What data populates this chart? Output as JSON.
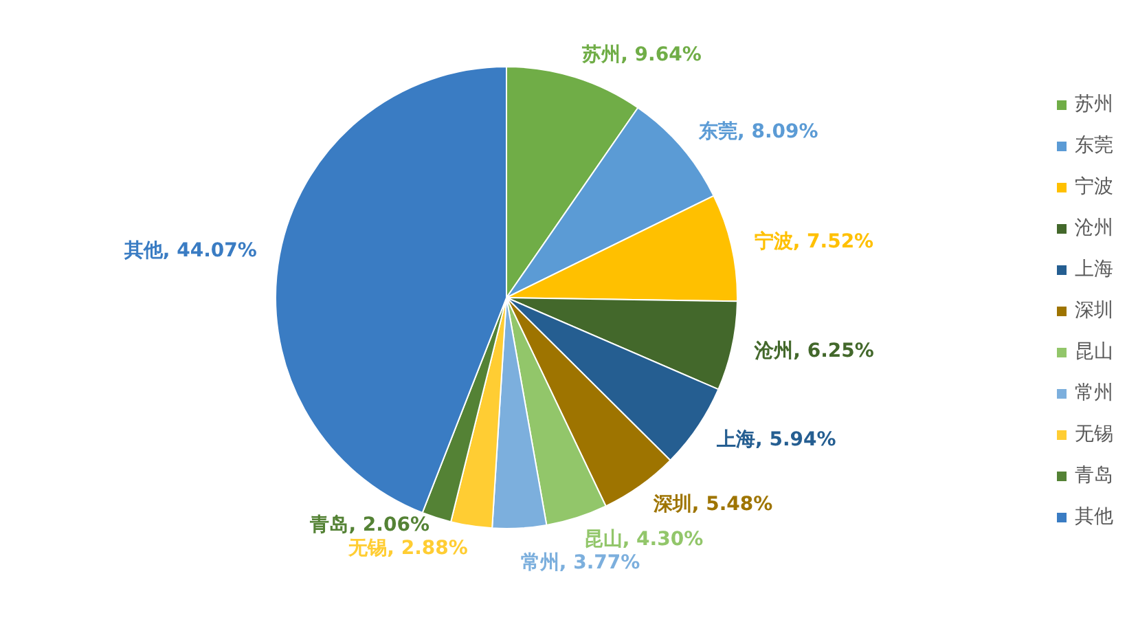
{
  "chart_data": {
    "type": "pie",
    "categories": [
      "苏州",
      "东莞",
      "宁波",
      "沧州",
      "上海",
      "深圳",
      "昆山",
      "常州",
      "无锡",
      "青岛",
      "其他"
    ],
    "values": [
      9.64,
      8.09,
      7.52,
      6.25,
      5.94,
      5.48,
      4.3,
      3.77,
      2.88,
      2.06,
      44.07
    ],
    "value_labels": [
      "苏州, 9.64%",
      "东莞, 8.09%",
      "宁波, 7.52%",
      "沧州, 6.25%",
      "上海, 5.94%",
      "深圳, 5.48%",
      "昆山, 4.30%",
      "常州, 3.77%",
      "无锡, 2.88%",
      "青岛, 2.06%",
      "其他, 44.07%"
    ],
    "colors": [
      "#70ad47",
      "#5b9bd5",
      "#ffc000",
      "#43682b",
      "#255e91",
      "#9e7400",
      "#92c66a",
      "#7cafdd",
      "#ffcd33",
      "#548235",
      "#3a7cc3"
    ],
    "legend": "right"
  }
}
